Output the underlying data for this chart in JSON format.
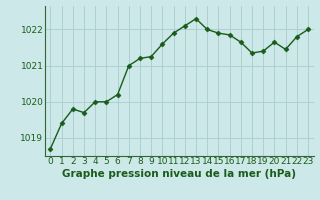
{
  "x": [
    0,
    1,
    2,
    3,
    4,
    5,
    6,
    7,
    8,
    9,
    10,
    11,
    12,
    13,
    14,
    15,
    16,
    17,
    18,
    19,
    20,
    21,
    22,
    23
  ],
  "y": [
    1018.7,
    1019.4,
    1019.8,
    1019.7,
    1020.0,
    1020.0,
    1020.2,
    1021.0,
    1021.2,
    1021.25,
    1021.6,
    1021.9,
    1022.1,
    1022.3,
    1022.0,
    1021.9,
    1021.85,
    1021.65,
    1021.35,
    1021.4,
    1021.65,
    1021.45,
    1021.8,
    1022.0
  ],
  "line_color": "#1a5c1a",
  "marker": "D",
  "marker_size": 2.5,
  "background_color": "#cce8e8",
  "grid_color": "#aacccc",
  "xlabel": "Graphe pression niveau de la mer (hPa)",
  "label_color": "#1a5c1a",
  "tick_label_fontsize": 6.5,
  "xlabel_fontsize": 7.5,
  "ylim": [
    1018.5,
    1022.65
  ],
  "yticks": [
    1019,
    1020,
    1021,
    1022
  ],
  "xticks": [
    0,
    1,
    2,
    3,
    4,
    5,
    6,
    7,
    8,
    9,
    10,
    11,
    12,
    13,
    14,
    15,
    16,
    17,
    18,
    19,
    20,
    21,
    22,
    23
  ],
  "line_width": 1.0,
  "spine_color": "#336633",
  "xlim": [
    -0.5,
    23.5
  ]
}
